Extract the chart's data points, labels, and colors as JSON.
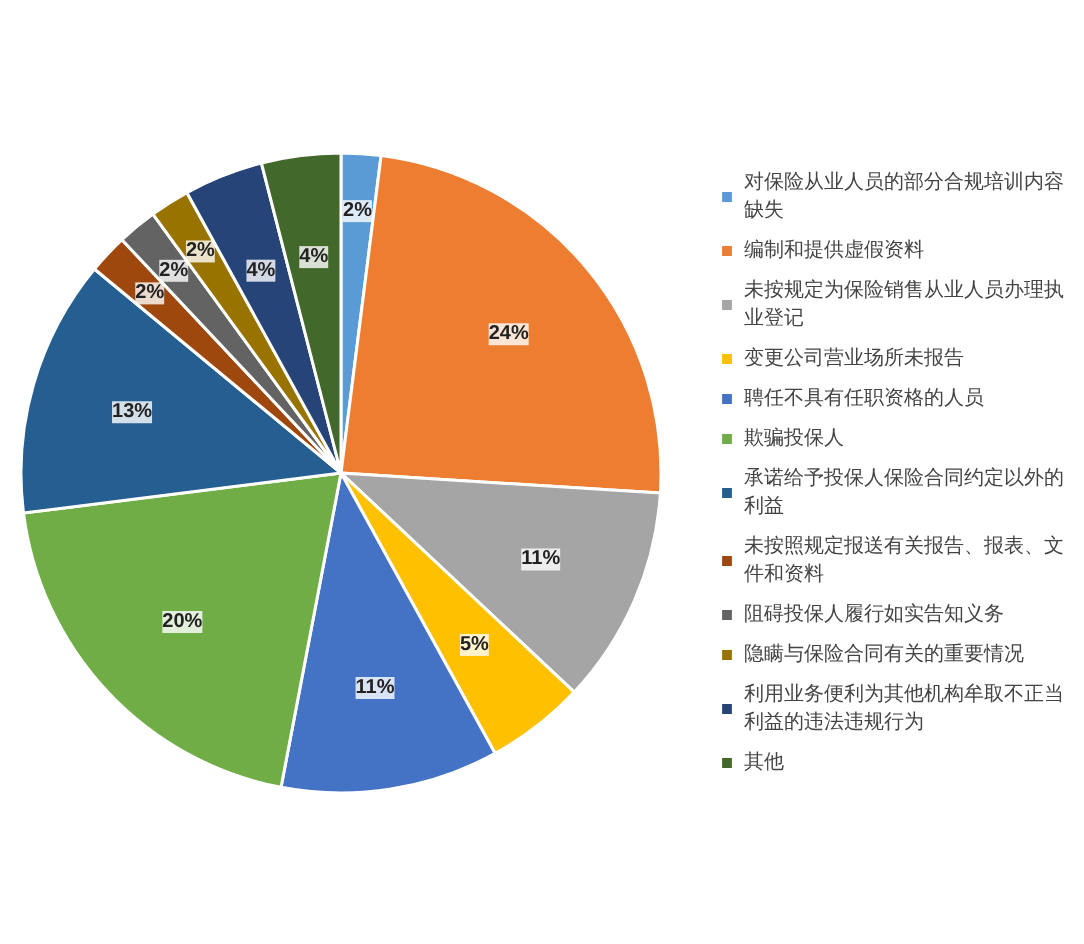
{
  "chart_data": {
    "type": "pie",
    "categories": [
      "对保险从业人员的部分合规培训内容缺失",
      "编制和提供虚假资料",
      "未按规定为保险销售从业人员办理执业登记",
      "变更公司营业场所未报告",
      "聘任不具有任职资格的人员",
      "欺骗投保人",
      "承诺给予投保人保险合同约定以外的利益",
      "未按照规定报送有关报告、报表、文件和资料",
      "阻碍投保人履行如实告知义务",
      "隐瞒与保险合同有关的重要情况",
      "利用业务便利为其他机构牟取不正当利益的违法违规行为",
      "其他"
    ],
    "values": [
      2,
      24,
      11,
      5,
      11,
      20,
      13,
      2,
      2,
      2,
      4,
      4
    ],
    "value_labels": [
      "2%",
      "24%",
      "11%",
      "5%",
      "11%",
      "20%",
      "13%",
      "2%",
      "2%",
      "2%",
      "4%",
      "4%"
    ],
    "colors": [
      "#5b9bd5",
      "#ed7d31",
      "#a5a5a5",
      "#ffc000",
      "#4472c4",
      "#70ad47",
      "#255e91",
      "#9e480e",
      "#636363",
      "#997300",
      "#264478",
      "#43682b"
    ],
    "legend": "right"
  }
}
